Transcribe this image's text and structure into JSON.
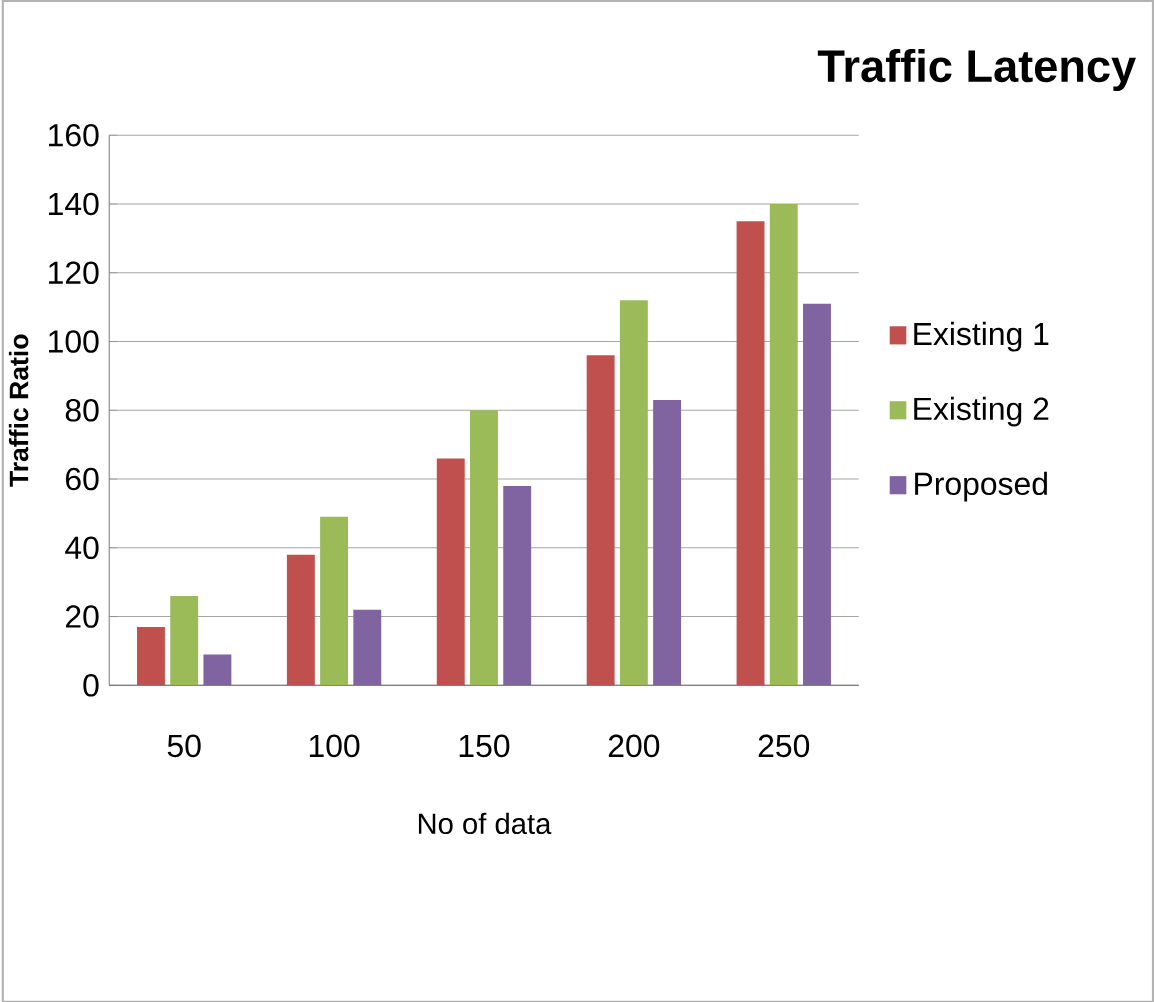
{
  "chart_data": {
    "type": "bar",
    "title": "Traffic Latency",
    "xlabel": "No of data",
    "ylabel": "Traffic Ratio",
    "categories": [
      "50",
      "100",
      "150",
      "200",
      "250"
    ],
    "series": [
      {
        "name": "Existing 1",
        "color": "#c0504d",
        "values": [
          17,
          38,
          66,
          96,
          135
        ]
      },
      {
        "name": "Existing 2",
        "color": "#9bbb59",
        "values": [
          26,
          49,
          80,
          112,
          140
        ]
      },
      {
        "name": "Proposed",
        "color": "#8064a2",
        "values": [
          9,
          22,
          58,
          83,
          111
        ]
      }
    ],
    "ylim": [
      0,
      160
    ],
    "yticks": [
      0,
      20,
      40,
      60,
      80,
      100,
      120,
      140,
      160
    ],
    "grid": "y",
    "legend": "right"
  }
}
